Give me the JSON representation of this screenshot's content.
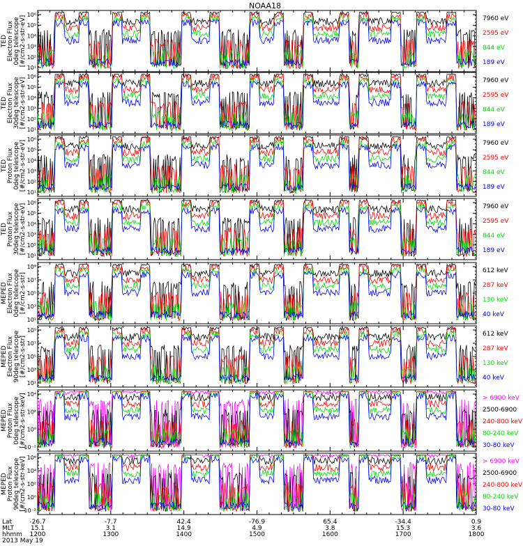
{
  "chart_data": {
    "type": "line",
    "title": "NOAA18",
    "time_label": "2013 May 19",
    "x_rows": [
      {
        "label": "Lat",
        "values": [
          "-26.7",
          "-7.7",
          "42.4",
          "-76.9",
          "65.4",
          "-34.4",
          "0.9"
        ]
      },
      {
        "label": "MLT",
        "values": [
          "15.1",
          "3.1",
          "14.9",
          "4.9",
          "3.8",
          "15.3",
          "3.6"
        ]
      },
      {
        "label": "hhmm",
        "values": [
          "1200",
          "1300",
          "1400",
          "1500",
          "1600",
          "1700",
          "1800"
        ]
      }
    ],
    "x_tick_times": [
      1200,
      1300,
      1400,
      1500,
      1600,
      1700,
      1800
    ],
    "xlim": [
      1200,
      1800
    ],
    "grid": false,
    "panels": [
      {
        "ylabel": [
          "TED",
          "Electron Flux",
          "0deg telescope",
          "[#/cm2-s-str-eV]"
        ],
        "yticks": [
          "10¹",
          "10²",
          "10³",
          "10⁴",
          "10⁵",
          "10⁶"
        ],
        "ylog": [
          1,
          6
        ],
        "series": [
          {
            "name": "7960 eV",
            "color": "#000000"
          },
          {
            "name": "2595 eV",
            "color": "#ff0000"
          },
          {
            "name": "844 eV",
            "color": "#00dd00"
          },
          {
            "name": "189 eV",
            "color": "#0000ff"
          }
        ]
      },
      {
        "ylabel": [
          "TED",
          "Electron Flux",
          "30deg telescope",
          "[#/cm2-s-str-eV]"
        ],
        "yticks": [
          "10¹",
          "10²",
          "10³",
          "10⁴",
          "10⁵",
          "10⁶"
        ],
        "ylog": [
          1,
          6
        ],
        "series": [
          {
            "name": "7960 eV",
            "color": "#000000"
          },
          {
            "name": "2595 eV",
            "color": "#ff0000"
          },
          {
            "name": "844 eV",
            "color": "#00dd00"
          },
          {
            "name": "189 eV",
            "color": "#0000ff"
          }
        ]
      },
      {
        "ylabel": [
          "TED",
          "Proton Flux",
          "0deg telescope",
          "[#/cm2-s-str-eV]"
        ],
        "yticks": [
          "10¹",
          "10²",
          "10³",
          "10⁴",
          "10⁵",
          "10⁶"
        ],
        "ylog": [
          1,
          6
        ],
        "series": [
          {
            "name": "7960 eV",
            "color": "#000000"
          },
          {
            "name": "2595 eV",
            "color": "#ff0000"
          },
          {
            "name": "844 eV",
            "color": "#00dd00"
          },
          {
            "name": "189 eV",
            "color": "#0000ff"
          }
        ]
      },
      {
        "ylabel": [
          "TED",
          "Proton Flux",
          "30deg telescope",
          "[#/cm2-s-str-eV]"
        ],
        "yticks": [
          "10¹",
          "10²",
          "10³",
          "10⁴",
          "10⁵",
          "10⁶"
        ],
        "ylog": [
          1,
          6
        ],
        "series": [
          {
            "name": "7960 eV",
            "color": "#000000"
          },
          {
            "name": "2595 eV",
            "color": "#ff0000"
          },
          {
            "name": "844 eV",
            "color": "#00dd00"
          },
          {
            "name": "189 eV",
            "color": "#0000ff"
          }
        ]
      },
      {
        "ylabel": [
          "MEPED",
          "Electron Flux",
          "0deg telescope",
          "[#/cm2-s-str]"
        ],
        "yticks": [
          "10¹",
          "10³",
          "10⁵",
          "10⁷",
          "10⁹"
        ],
        "ylog": [
          1,
          9
        ],
        "series": [
          {
            "name": "612 keV",
            "color": "#000000"
          },
          {
            "name": "287 keV",
            "color": "#ff0000"
          },
          {
            "name": "130 keV",
            "color": "#00dd00"
          },
          {
            "name": "40 keV",
            "color": "#0000ff"
          }
        ]
      },
      {
        "ylabel": [
          "MEPED",
          "Electron Flux",
          "90deg telescope",
          "[#/cm2-s-str]"
        ],
        "yticks": [
          "10¹",
          "10³",
          "10⁵",
          "10⁷",
          "10⁹"
        ],
        "ylog": [
          1,
          9
        ],
        "series": [
          {
            "name": "612 keV",
            "color": "#000000"
          },
          {
            "name": "287 keV",
            "color": "#ff0000"
          },
          {
            "name": "130 keV",
            "color": "#00dd00"
          },
          {
            "name": "40 keV",
            "color": "#0000ff"
          }
        ]
      },
      {
        "ylabel": [
          "MEPED",
          "Proton Flux",
          "0deg telescope",
          "[#/cm2-s-str-keV]"
        ],
        "yticks": [
          "10⁻²",
          "10⁰",
          "10²",
          "10⁴"
        ],
        "ylog": [
          -2,
          5
        ],
        "series": [
          {
            "name": "> 6900 keV",
            "color": "#ff00ff"
          },
          {
            "name": "2500-6900",
            "color": "#000000"
          },
          {
            "name": "240-800 keV",
            "color": "#ff0000"
          },
          {
            "name": "80-240 keV",
            "color": "#00dd00"
          },
          {
            "name": "30-80 keV",
            "color": "#0000ff"
          }
        ]
      },
      {
        "ylabel": [
          "MEPED",
          "Proton Flux",
          "90deg telescope",
          "[#/cm2-s-str-keV]"
        ],
        "yticks": [
          "10⁻²",
          "10⁰",
          "10²",
          "10⁴",
          "10⁶"
        ],
        "ylog": [
          -2,
          6
        ],
        "series": [
          {
            "name": "> 6900 keV",
            "color": "#ff00ff"
          },
          {
            "name": "2500-6900",
            "color": "#000000"
          },
          {
            "name": "240-800 keV",
            "color": "#ff0000"
          },
          {
            "name": "80-240 keV",
            "color": "#00dd00"
          },
          {
            "name": "30-80 keV",
            "color": "#0000ff"
          }
        ]
      }
    ]
  }
}
